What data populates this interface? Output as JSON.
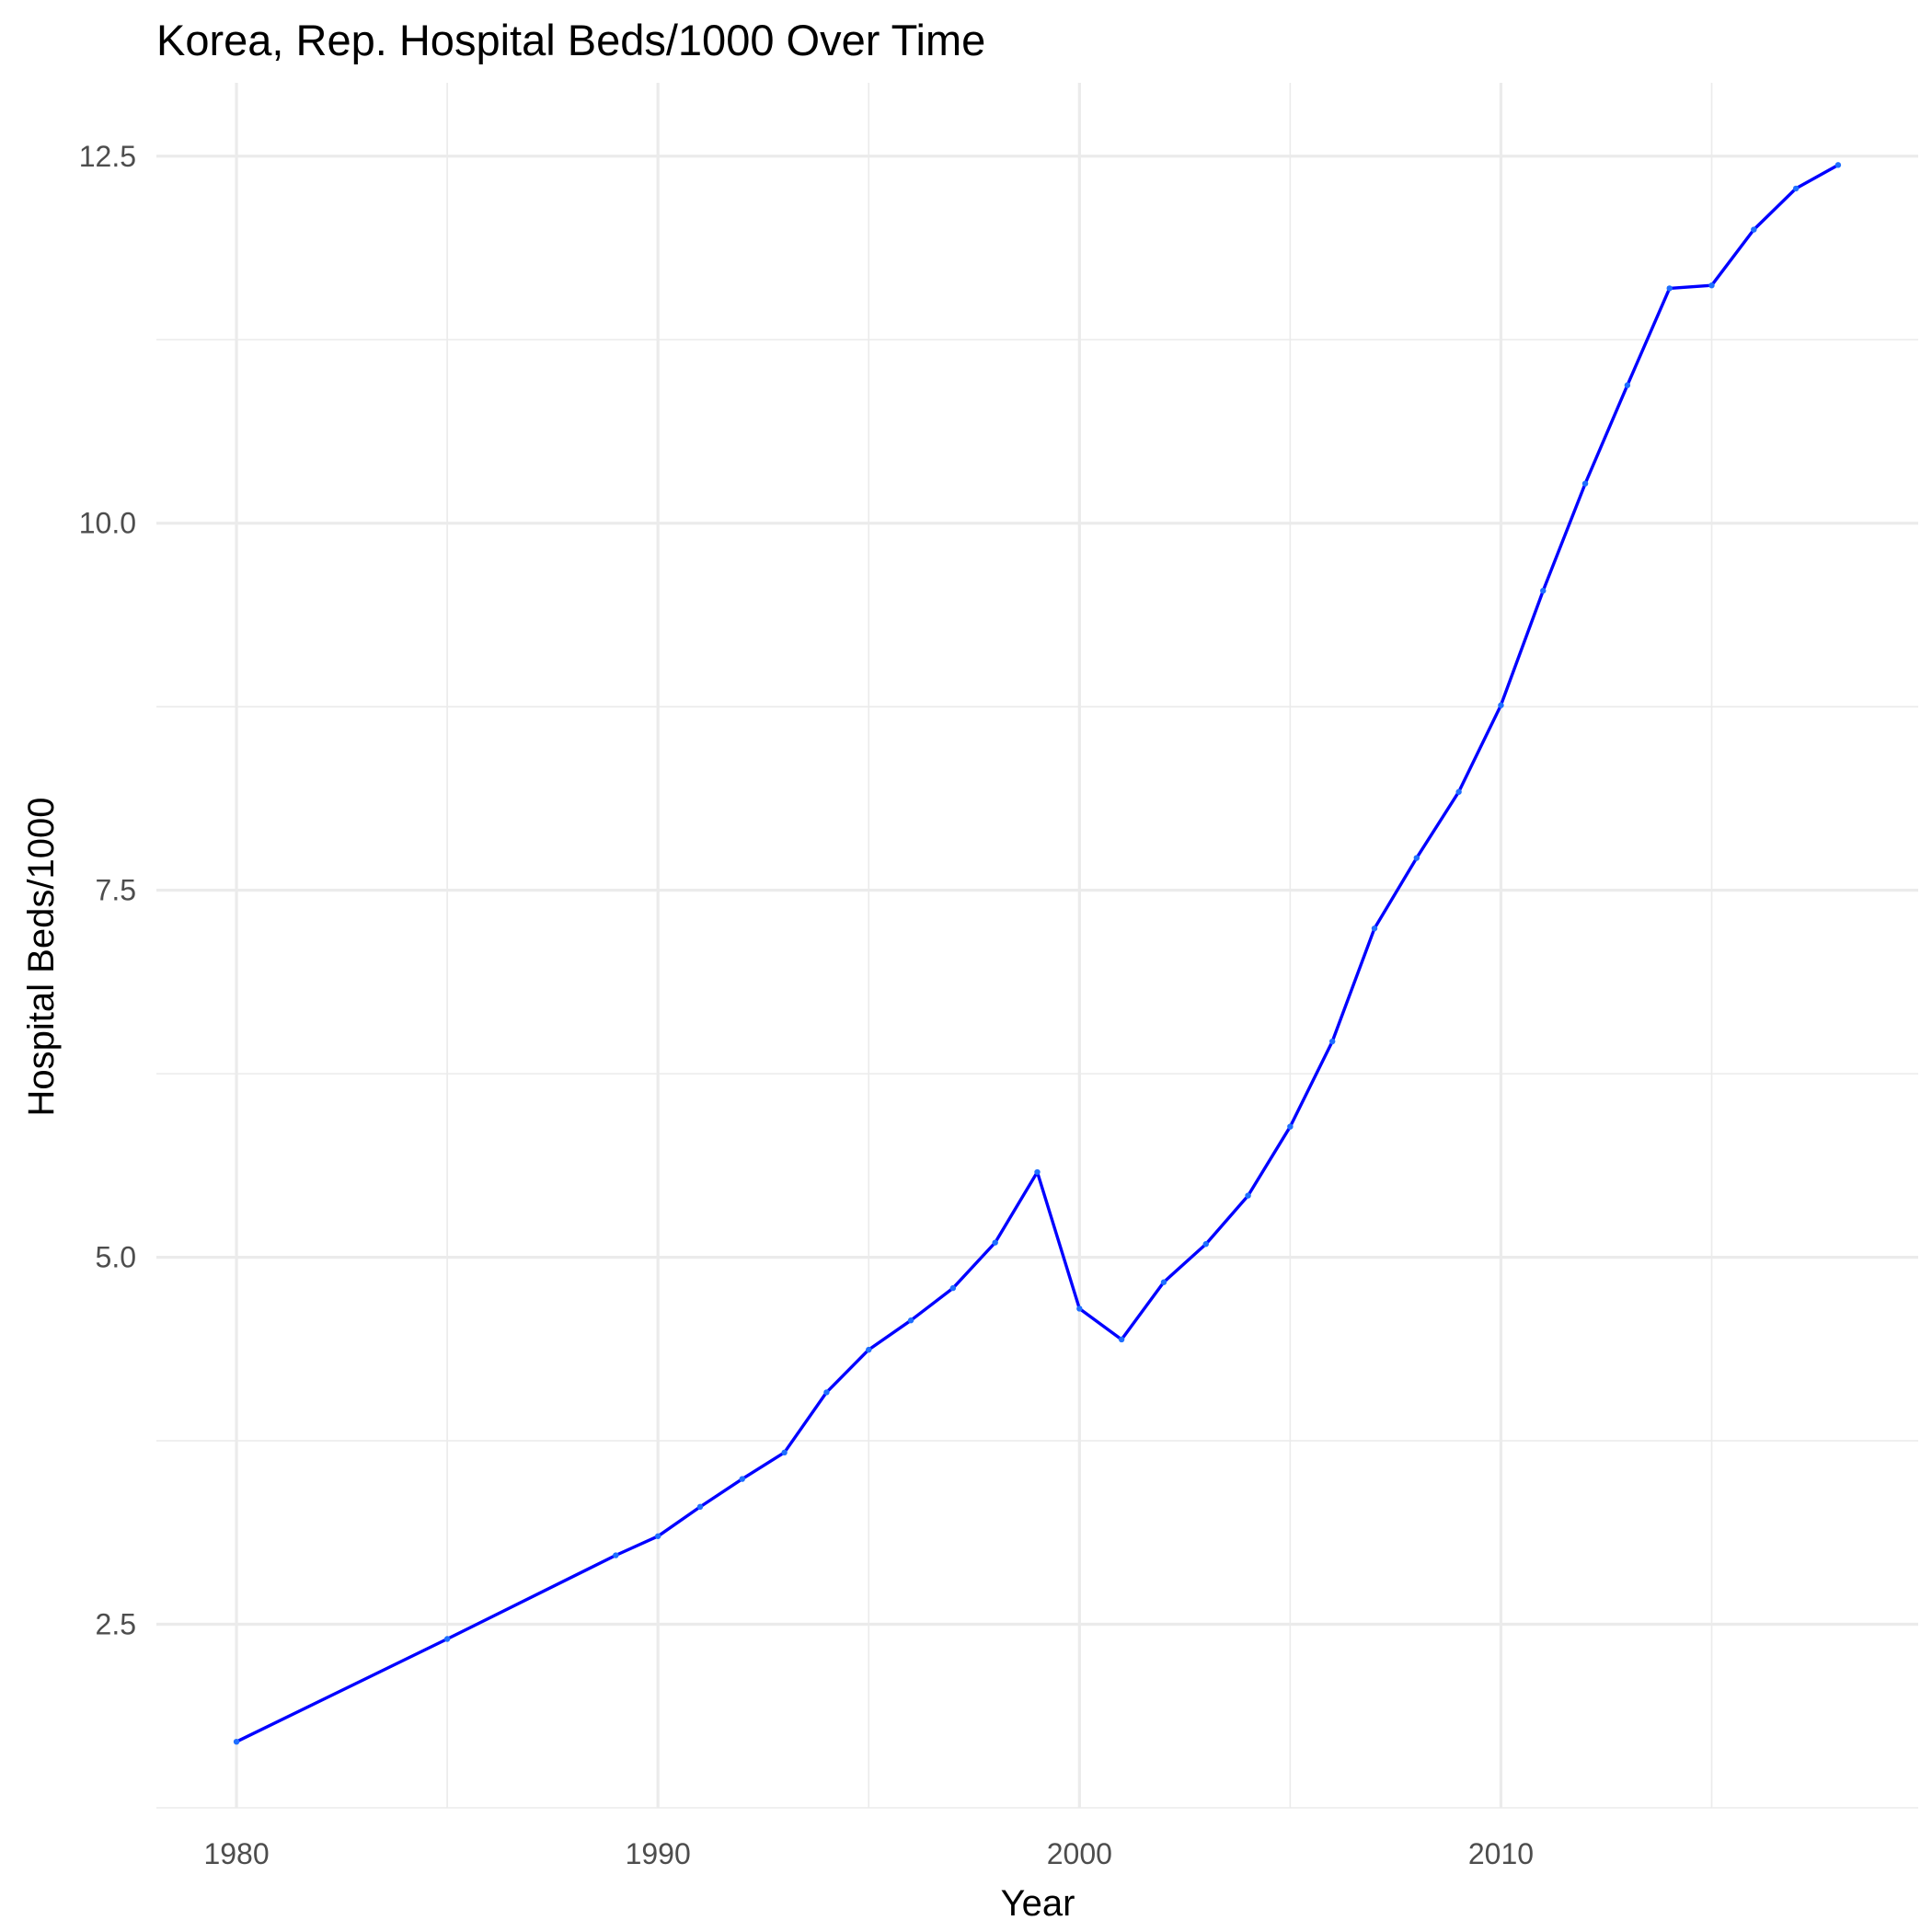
{
  "chart_data": {
    "type": "line",
    "title": "Korea, Rep. Hospital Beds/1000 Over Time",
    "xlabel": "Year",
    "ylabel": "Hospital Beds/1000",
    "x_ticks": [
      1980,
      1990,
      2000,
      2010
    ],
    "x_minor_ticks": [
      1985,
      1995,
      2005,
      2015
    ],
    "y_ticks": [
      "2.5",
      "5.0",
      "7.5",
      "10.0",
      "12.5"
    ],
    "y_minor_ticks": [
      1.25,
      3.75,
      6.25,
      8.75,
      11.25
    ],
    "xlim": [
      1978.1,
      2019.9
    ],
    "ylim": [
      1.25,
      13.0
    ],
    "grid": true,
    "line_color": "#0000ff",
    "point_color": "#1e6fff",
    "series": [
      {
        "x": [
          1980,
          1985,
          1989,
          1990,
          1991,
          1992,
          1993,
          1994,
          1995,
          1996,
          1997,
          1998,
          1999,
          2000,
          2001,
          2002,
          2003,
          2004,
          2005,
          2006,
          2007,
          2008,
          2009,
          2010,
          2011,
          2012,
          2013,
          2014,
          2015,
          2016,
          2017,
          2018
        ],
        "y": [
          1.7,
          2.4,
          2.97,
          3.1,
          3.3,
          3.49,
          3.67,
          4.08,
          4.37,
          4.57,
          4.79,
          5.1,
          5.58,
          4.65,
          4.44,
          4.83,
          5.09,
          5.42,
          5.89,
          6.47,
          7.24,
          7.72,
          8.17,
          8.76,
          9.54,
          10.27,
          10.94,
          11.6,
          11.62,
          12.0,
          12.28,
          12.44
        ]
      }
    ]
  }
}
